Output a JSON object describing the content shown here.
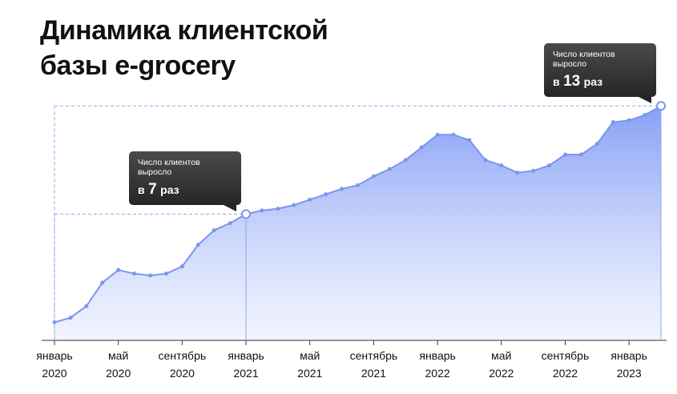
{
  "chart_data": {
    "type": "area",
    "title": "Динамика клиентской\nбазы e-grocery",
    "categories": [
      "январь\n2020",
      null,
      null,
      null,
      "май\n2020",
      null,
      null,
      null,
      "сентябрь\n2020",
      null,
      null,
      null,
      "январь\n2021",
      null,
      null,
      null,
      "май\n2021",
      null,
      null,
      null,
      "сентябрь\n2021",
      null,
      null,
      null,
      "январь\n2022",
      null,
      null,
      null,
      "май\n2022",
      null,
      null,
      null,
      "сентябрь\n2022",
      null,
      null,
      null,
      "январь\n2023",
      null,
      null
    ],
    "values": [
      1,
      1.25,
      1.9,
      3.2,
      3.9,
      3.7,
      3.6,
      3.7,
      4.1,
      5.3,
      6.1,
      6.5,
      7,
      7.2,
      7.3,
      7.5,
      7.8,
      8.1,
      8.4,
      8.6,
      9.1,
      9.5,
      10,
      10.7,
      11.4,
      11.4,
      11.1,
      10,
      9.7,
      9.3,
      9.4,
      9.7,
      10.3,
      10.3,
      10.9,
      12.1,
      12.2,
      12.5,
      13
    ],
    "color": "#7b95ef",
    "ylim": [
      0,
      13.5
    ],
    "annotations": [
      {
        "text": "Число клиентов выросло",
        "prefix": "в",
        "value": 7,
        "suffix": "раз"
      },
      {
        "text": "Число клиентов выросло",
        "prefix": "в",
        "value": 13,
        "suffix": "раз"
      }
    ]
  }
}
